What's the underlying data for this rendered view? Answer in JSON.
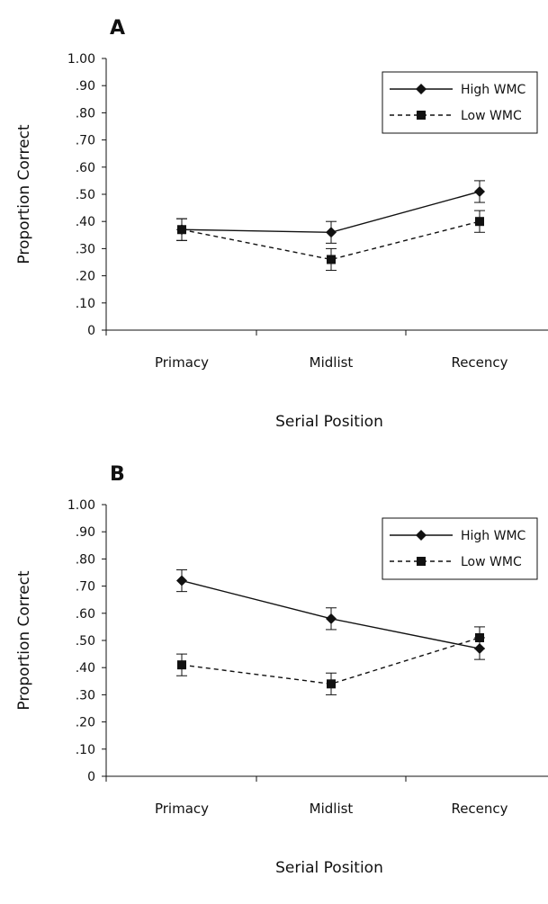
{
  "chart_data": [
    {
      "type": "line",
      "panel_label": "A",
      "categories": [
        "Primacy",
        "Midlist",
        "Recency"
      ],
      "xlabel": "Serial Position",
      "ylabel": "Proportion Correct",
      "ylim": [
        0,
        1.0
      ],
      "y_ticks": [
        0,
        0.1,
        0.2,
        0.3,
        0.4,
        0.5,
        0.6,
        0.7,
        0.8,
        0.9,
        1.0
      ],
      "y_tick_labels": [
        "0",
        ".10",
        ".20",
        ".30",
        ".40",
        ".50",
        ".60",
        ".70",
        ".80",
        ".90",
        "1.00"
      ],
      "legend_position": "top-right",
      "grid": false,
      "series": [
        {
          "name": "High WMC",
          "marker": "diamond",
          "line_style": "solid",
          "values": [
            0.37,
            0.36,
            0.51
          ],
          "error_low": [
            0.33,
            0.32,
            0.47
          ],
          "error_high": [
            0.41,
            0.4,
            0.55
          ]
        },
        {
          "name": "Low WMC",
          "marker": "square",
          "line_style": "dashed",
          "values": [
            0.37,
            0.26,
            0.4
          ],
          "error_low": [
            0.33,
            0.22,
            0.36
          ],
          "error_high": [
            0.41,
            0.3,
            0.44
          ]
        }
      ]
    },
    {
      "type": "line",
      "panel_label": "B",
      "categories": [
        "Primacy",
        "Midlist",
        "Recency"
      ],
      "xlabel": "Serial Position",
      "ylabel": "Proportion Correct",
      "ylim": [
        0,
        1.0
      ],
      "y_ticks": [
        0,
        0.1,
        0.2,
        0.3,
        0.4,
        0.5,
        0.6,
        0.7,
        0.8,
        0.9,
        1.0
      ],
      "y_tick_labels": [
        "0",
        ".10",
        ".20",
        ".30",
        ".40",
        ".50",
        ".60",
        ".70",
        ".80",
        ".90",
        "1.00"
      ],
      "legend_position": "top-right",
      "grid": false,
      "series": [
        {
          "name": "High WMC",
          "marker": "diamond",
          "line_style": "solid",
          "values": [
            0.72,
            0.58,
            0.47
          ],
          "error_low": [
            0.68,
            0.54,
            0.43
          ],
          "error_high": [
            0.76,
            0.62,
            0.51
          ]
        },
        {
          "name": "Low WMC",
          "marker": "square",
          "line_style": "dashed",
          "values": [
            0.41,
            0.34,
            0.51
          ],
          "error_low": [
            0.37,
            0.3,
            0.47
          ],
          "error_high": [
            0.45,
            0.38,
            0.55
          ]
        }
      ]
    }
  ]
}
